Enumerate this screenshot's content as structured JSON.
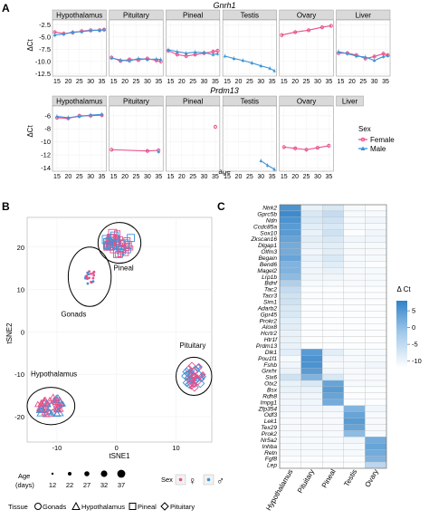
{
  "panel_labels": [
    "A",
    "B",
    "C"
  ],
  "colors": {
    "female": "#e8508b",
    "male": "#3d93d6",
    "strip": "#d9d9d9",
    "heat_high": "#2f82c8",
    "heat_low": "#ffffff"
  },
  "chart_data": [
    {
      "type": "line",
      "title": "Gnrh1",
      "facets": [
        "Hypothalamus",
        "Pituitary",
        "Pineal",
        "Testis",
        "Ovary",
        "Liver"
      ],
      "ylabel": "ΔCt",
      "xlabel": "",
      "x_ticks": [
        "15",
        "20",
        "25",
        "30",
        "35"
      ],
      "y_ticks": [
        "-2.5",
        "-5.0",
        "-7.5",
        "-10.0",
        "-12.5"
      ],
      "xlim": [
        13,
        37
      ],
      "ylim": [
        -13,
        -1.5
      ],
      "series": [
        {
          "name": "Female",
          "facets": {
            "Hypothalamus": [
              [
                14,
                -4
              ],
              [
                18,
                -4.3
              ],
              [
                22,
                -4.1
              ],
              [
                26,
                -3.8
              ],
              [
                30,
                -3.6
              ],
              [
                34,
                -3.6
              ],
              [
                36,
                -3.5
              ]
            ],
            "Pituitary": [
              [
                14,
                -9.2
              ],
              [
                18,
                -9.9
              ],
              [
                22,
                -9.6
              ],
              [
                26,
                -9.7
              ],
              [
                30,
                -9.4
              ],
              [
                34,
                -9.8
              ],
              [
                36,
                -10.0
              ]
            ],
            "Pineal": [
              [
                14,
                -7.8
              ],
              [
                18,
                -8.6
              ],
              [
                22,
                -8.9
              ],
              [
                26,
                -8.6
              ],
              [
                30,
                -8.3
              ],
              [
                34,
                -8.0
              ],
              [
                36,
                -7.8
              ]
            ],
            "Testis": [],
            "Ovary": [
              [
                14,
                -4.6
              ],
              [
                20,
                -4.0
              ],
              [
                26,
                -3.6
              ],
              [
                32,
                -3.0
              ],
              [
                36,
                -2.7
              ]
            ],
            "Liver": [
              [
                14,
                -8.3
              ],
              [
                18,
                -8.3
              ],
              [
                22,
                -8.7
              ],
              [
                26,
                -9.4
              ],
              [
                30,
                -9.0
              ],
              [
                34,
                -8.4
              ],
              [
                36,
                -8.7
              ]
            ]
          }
        },
        {
          "name": "Male",
          "facets": {
            "Hypothalamus": [
              [
                14,
                -4.6
              ],
              [
                18,
                -4.4
              ],
              [
                22,
                -4.0
              ],
              [
                26,
                -3.9
              ],
              [
                30,
                -3.7
              ],
              [
                34,
                -3.6
              ],
              [
                36,
                -3.5
              ]
            ],
            "Pituitary": [
              [
                14,
                -9.3
              ],
              [
                18,
                -9.7
              ],
              [
                22,
                -9.9
              ],
              [
                26,
                -9.4
              ],
              [
                30,
                -9.6
              ],
              [
                34,
                -9.5
              ],
              [
                36,
                -9.6
              ]
            ],
            "Pineal": [
              [
                14,
                -7.6
              ],
              [
                18,
                -8.0
              ],
              [
                22,
                -8.3
              ],
              [
                26,
                -8.1
              ],
              [
                30,
                -8.2
              ],
              [
                34,
                -8.6
              ],
              [
                36,
                -8.4
              ]
            ],
            "Testis": [
              [
                14,
                -8.9
              ],
              [
                18,
                -9.4
              ],
              [
                22,
                -9.8
              ],
              [
                26,
                -10.3
              ],
              [
                30,
                -10.9
              ],
              [
                34,
                -11.4
              ],
              [
                36,
                -11.9
              ]
            ],
            "Ovary": [],
            "Liver": [
              [
                14,
                -8.0
              ],
              [
                18,
                -8.4
              ],
              [
                22,
                -8.9
              ],
              [
                26,
                -9.1
              ],
              [
                30,
                -9.8
              ],
              [
                34,
                -9.0
              ],
              [
                36,
                -8.8
              ]
            ]
          }
        }
      ]
    },
    {
      "type": "line",
      "title": "Prdm13",
      "facets": [
        "Hypothalamus",
        "Pituitary",
        "Pineal",
        "Testis",
        "Ovary",
        "Liver"
      ],
      "ylabel": "ΔCt",
      "xlabel": "age",
      "x_ticks": [
        "15",
        "20",
        "25",
        "30",
        "35"
      ],
      "y_ticks": [
        "-6",
        "-8",
        "-10",
        "-12",
        "-14"
      ],
      "xlim": [
        13,
        37
      ],
      "ylim": [
        -14.5,
        -4.5
      ],
      "legend": {
        "title": "Sex",
        "entries": [
          "Female",
          "Male"
        ],
        "position": "right"
      },
      "series": [
        {
          "name": "Female",
          "facets": {
            "Hypothalamus": [
              [
                15,
                -6.3
              ],
              [
                20,
                -6.4
              ],
              [
                25,
                -6.0
              ],
              [
                30,
                -6.0
              ],
              [
                35,
                -5.9
              ]
            ],
            "Pituitary": [
              [
                14,
                -11.2
              ],
              [
                30,
                -11.4
              ],
              [
                35,
                -11.3
              ]
            ],
            "Pineal": [
              [
                35,
                -7.7
              ]
            ],
            "Testis": [],
            "Ovary": [
              [
                15,
                -10.8
              ],
              [
                20,
                -11.0
              ],
              [
                25,
                -11.2
              ],
              [
                30,
                -10.9
              ],
              [
                35,
                -10.6
              ]
            ],
            "Liver": []
          }
        },
        {
          "name": "Male",
          "facets": {
            "Hypothalamus": [
              [
                15,
                -6.1
              ],
              [
                20,
                -6.3
              ],
              [
                25,
                -6.1
              ],
              [
                30,
                -5.9
              ],
              [
                35,
                -5.8
              ]
            ],
            "Pituitary": [
              [
                35,
                -11.5
              ]
            ],
            "Pineal": [],
            "Testis": [
              [
                30,
                -12.9
              ],
              [
                33,
                -13.6
              ],
              [
                36,
                -14.2
              ]
            ],
            "Ovary": [],
            "Liver": []
          }
        }
      ]
    },
    {
      "type": "scatter",
      "xlabel": "tSNE1",
      "ylabel": "tSNE2",
      "x_ticks": [
        "-10",
        "0",
        "10"
      ],
      "y_ticks": [
        "20",
        "10",
        "0",
        "-10",
        "-20"
      ],
      "xlim": [
        -15,
        16
      ],
      "ylim": [
        -26,
        27
      ],
      "cluster_labels": [
        "Pineal",
        "Gonads",
        "Hypothalamus",
        "Pituitary"
      ],
      "clusters": [
        {
          "label": "Pineal",
          "center": [
            0.5,
            21
          ],
          "rx": 3.6,
          "ry": 4.8,
          "shape": "square",
          "spread": [
            2.3,
            2.8
          ]
        },
        {
          "label": "Gonads",
          "center": [
            -4.5,
            13
          ],
          "rx": 3.6,
          "ry": 7,
          "shape": "circle",
          "spread": [
            1.0,
            1.8
          ]
        },
        {
          "label": "Hypothalamus",
          "center": [
            -11,
            -17.5
          ],
          "rx": 4,
          "ry": 4.4,
          "shape": "triangle",
          "spread": [
            2.3,
            2.3
          ]
        },
        {
          "label": "Pituitary",
          "center": [
            13,
            -10.5
          ],
          "rx": 3,
          "ry": 4.5,
          "shape": "diamond",
          "spread": [
            1.6,
            2.7
          ]
        }
      ],
      "legend": {
        "age": {
          "title": "Age (days)",
          "values": [
            "12",
            "22",
            "27",
            "32",
            "37"
          ]
        },
        "sex": {
          "title": "Sex",
          "entries": [
            "♀",
            "♂"
          ]
        },
        "tissue": {
          "title": "Tissue",
          "entries": [
            "Gonads",
            "Hypothalamus",
            "Pineal",
            "Pituitary"
          ]
        }
      }
    },
    {
      "type": "heatmap",
      "columns": [
        "Hypothalamus",
        "Pituitary",
        "Pineal",
        "Testis",
        "Ovary"
      ],
      "rows": [
        "Ntrk2",
        "Gprc5b",
        "Ndn",
        "Ccdc85a",
        "Sox10",
        "Zkscan16",
        "Dlgap1",
        "Olfm3",
        "Begain",
        "Bend6",
        "Magel2",
        "Lrp1b",
        "Bdnf",
        "Tac2",
        "Tacr3",
        "Sim1",
        "Adarb2",
        "Gpr45",
        "Prokr2",
        "Alox8",
        "Hcrtr2",
        "Htr1f",
        "Prdm13",
        "Dlk1",
        "Pou1f1",
        "Fshb",
        "Gnrhr",
        "Six6",
        "Otx2",
        "Bsx",
        "Rdh8",
        "Impg1",
        "Zfp354",
        "Odf3",
        "Lek1",
        "Tex29",
        "Prok2",
        "Nr5a2",
        "Inhba",
        "Retn",
        "Fgf8",
        "Lep"
      ],
      "legend_title": "Δ Ct",
      "legend_ticks": [
        "5",
        "0",
        "-5",
        "-10"
      ],
      "zlim": [
        -12,
        8
      ],
      "values": [
        [
          6,
          -8,
          -6,
          -10,
          -11
        ],
        [
          7,
          -6,
          -4,
          -10,
          -10
        ],
        [
          6,
          -6,
          -5,
          -10,
          -9
        ],
        [
          5,
          -7,
          -6,
          -10,
          -10
        ],
        [
          5,
          -8,
          -5,
          -11,
          -9
        ],
        [
          4,
          -7,
          -6,
          -9,
          -9
        ],
        [
          3,
          -8,
          -7,
          -10,
          -10
        ],
        [
          3,
          -9,
          -7,
          -10,
          -10
        ],
        [
          4,
          -8,
          -6,
          -10,
          -10
        ],
        [
          2,
          -9,
          -7,
          -10,
          -11
        ],
        [
          2,
          -9,
          -8,
          -10,
          -10
        ],
        [
          1,
          -9,
          -9,
          -10,
          -10
        ],
        [
          -2,
          -10,
          -10,
          -10,
          -10
        ],
        [
          -4,
          -11,
          -11,
          -11,
          -11
        ],
        [
          -5,
          -11,
          -11,
          -11,
          -11
        ],
        [
          -5,
          -11,
          -11,
          -11,
          -11
        ],
        [
          -6,
          -11,
          -11,
          -11,
          -11
        ],
        [
          -6,
          -11,
          -11,
          -11,
          -11
        ],
        [
          -7,
          -11,
          -11,
          -11,
          -11
        ],
        [
          -7,
          -11,
          -11,
          -11,
          -11
        ],
        [
          -8,
          -11,
          -11,
          -11,
          -11
        ],
        [
          -8,
          -11,
          -11,
          -11,
          -11
        ],
        [
          -8,
          -11,
          -11,
          -11,
          -11
        ],
        [
          -7,
          5,
          -7,
          -10,
          -10
        ],
        [
          -10,
          6,
          -9,
          -10,
          -10
        ],
        [
          -9,
          6,
          -10,
          -10,
          -9
        ],
        [
          -8,
          5,
          -9,
          -10,
          -10
        ],
        [
          -5,
          2,
          -6,
          -10,
          -10
        ],
        [
          -8,
          -6,
          4,
          -10,
          -10
        ],
        [
          -8,
          -8,
          5,
          -11,
          -11
        ],
        [
          -9,
          -9,
          4,
          -11,
          -11
        ],
        [
          -9,
          -9,
          3,
          -11,
          -11
        ],
        [
          -9,
          -9,
          -9,
          2,
          -9
        ],
        [
          -10,
          -10,
          -10,
          4,
          -10
        ],
        [
          -10,
          -10,
          -10,
          5,
          -10
        ],
        [
          -10,
          -10,
          -10,
          4,
          -10
        ],
        [
          -10,
          -10,
          -10,
          1,
          -10
        ],
        [
          -10,
          -10,
          -10,
          -9,
          3
        ],
        [
          -10,
          -10,
          -10,
          -10,
          4
        ],
        [
          -10,
          -10,
          -10,
          -10,
          3
        ],
        [
          -11,
          -11,
          -11,
          -11,
          2
        ],
        [
          -11,
          -11,
          -11,
          -11,
          -3
        ]
      ]
    }
  ]
}
